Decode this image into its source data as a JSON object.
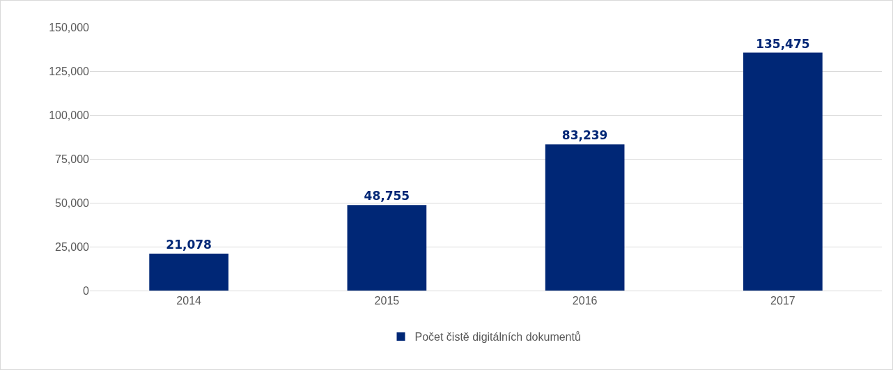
{
  "chart_data": {
    "type": "bar",
    "categories": [
      "2014",
      "2015",
      "2016",
      "2017"
    ],
    "series": [
      {
        "name": "Počet čistě digitálních dokumentů",
        "color": "#002776",
        "values": [
          21078,
          48755,
          83239,
          135475
        ],
        "value_labels": [
          "21,078",
          "48,755",
          "83,239",
          "135,475"
        ]
      }
    ],
    "ylim": [
      0,
      150000
    ],
    "yticks": [
      {
        "value": 0,
        "label": "0"
      },
      {
        "value": 25000,
        "label": "25,000"
      },
      {
        "value": 50000,
        "label": "50,000"
      },
      {
        "value": 75000,
        "label": "75,000"
      },
      {
        "value": 100000,
        "label": "100,000"
      },
      {
        "value": 125000,
        "label": "125,000"
      },
      {
        "value": 150000,
        "label": "150,000"
      }
    ],
    "grid": "y",
    "legend": "bottom"
  }
}
